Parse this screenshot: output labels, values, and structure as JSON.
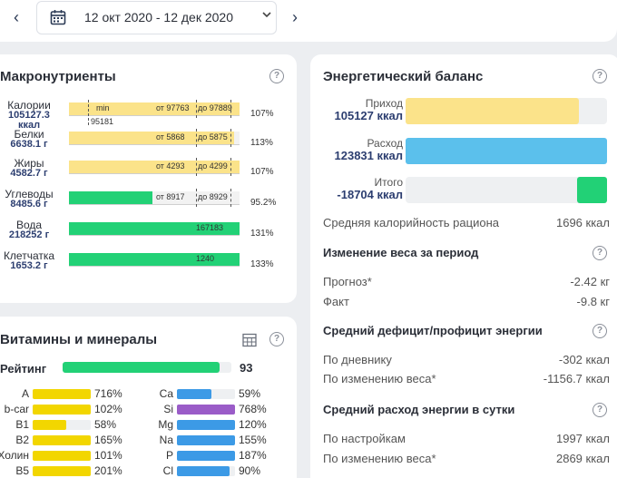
{
  "topbar": {
    "prev_arrow": "‹",
    "next_arrow": "›",
    "date_range": "12 окт 2020 - 12 дек 2020"
  },
  "macro": {
    "title": "Макронутриенты",
    "help": "?",
    "rows": [
      {
        "name": "Калории",
        "value": "105127.3 ккал",
        "pct": "107%",
        "fill_pct": 100,
        "fill": "yellow",
        "texts": {
          "min": "min",
          "from": "от 97763",
          "to": "до 97889",
          "under": "95181"
        }
      },
      {
        "name": "Белки",
        "value": "6638.1 г",
        "pct": "113%",
        "fill_pct": 97,
        "fill": "yellow",
        "texts": {
          "from": "от 5868",
          "to": "до 5875"
        }
      },
      {
        "name": "Жиры",
        "value": "4582.7 г",
        "pct": "107%",
        "fill_pct": 100,
        "fill": "yellow",
        "texts": {
          "from": "от 4293",
          "to": "до 4299"
        }
      },
      {
        "name": "Углеводы",
        "value": "8485.6 г",
        "pct": "95.2%",
        "fill_pct": 49,
        "fill": "green",
        "texts": {
          "from": "от 8917",
          "to": "до 8929"
        }
      },
      {
        "name": "Вода",
        "value": "218252 г",
        "pct": "131%",
        "fill_pct": 100,
        "fill": "green",
        "texts": {
          "center": "167183"
        }
      },
      {
        "name": "Клетчатка",
        "value": "1653.2 г",
        "pct": "133%",
        "fill_pct": 100,
        "fill": "green",
        "texts": {
          "center": "1240"
        }
      }
    ]
  },
  "energy": {
    "title": "Энергетический баланс",
    "help": "?",
    "income_label": "Приход",
    "income_value": "105127 ккал",
    "income_fill_pct": 86,
    "expense_label": "Расход",
    "expense_value": "123831 ккал",
    "expense_fill_pct": 100,
    "total_label": "Итого",
    "total_value": "-18704 ккал",
    "total_fill_pct": 15,
    "avg_label": "Средняя калорийность рациона",
    "avg_value": "1696 ккал",
    "weight_title": "Изменение веса за период",
    "forecast_label": "Прогноз*",
    "forecast_value": "-2.42 кг",
    "fact_label": "Факт",
    "fact_value": "-9.8 кг",
    "deficit_title": "Средний дефицит/профицит энергии",
    "diary_label": "По дневнику",
    "diary_value": "-302 ккал",
    "weightchange_label": "По изменению веса*",
    "weightchange_value": "-1156.7 ккал",
    "expense_title": "Средний расход энергии в сутки",
    "settings_label": "По настройкам",
    "settings_value": "1997 ккал",
    "weightchange2_label": "По изменению веса*",
    "weightchange2_value": "2869 ккал"
  },
  "vitamins": {
    "title": "Витамины и минералы",
    "help": "?",
    "rating_label": "Рейтинг",
    "rating_value": "93",
    "rating_fill_pct": 93,
    "left": [
      {
        "name": "A",
        "pct": "716%",
        "fill_pct": 100,
        "color": "#f2d600"
      },
      {
        "name": "b-car",
        "pct": "102%",
        "fill_pct": 100,
        "color": "#f2d600"
      },
      {
        "name": "B1",
        "pct": "58%",
        "fill_pct": 58,
        "color": "#f2d600"
      },
      {
        "name": "B2",
        "pct": "165%",
        "fill_pct": 100,
        "color": "#f2d600"
      },
      {
        "name": "Холин",
        "pct": "101%",
        "fill_pct": 100,
        "color": "#f2d600"
      },
      {
        "name": "B5",
        "pct": "201%",
        "fill_pct": 100,
        "color": "#f2d600"
      }
    ],
    "right": [
      {
        "name": "Ca",
        "pct": "59%",
        "fill_pct": 59,
        "color": "#3c9ae6"
      },
      {
        "name": "Si",
        "pct": "768%",
        "fill_pct": 100,
        "color": "#9a5cc8"
      },
      {
        "name": "Mg",
        "pct": "120%",
        "fill_pct": 100,
        "color": "#3c9ae6"
      },
      {
        "name": "Na",
        "pct": "155%",
        "fill_pct": 100,
        "color": "#3c9ae6"
      },
      {
        "name": "P",
        "pct": "187%",
        "fill_pct": 100,
        "color": "#3c9ae6"
      },
      {
        "name": "Cl",
        "pct": "90%",
        "fill_pct": 90,
        "color": "#3c9ae6"
      }
    ]
  }
}
